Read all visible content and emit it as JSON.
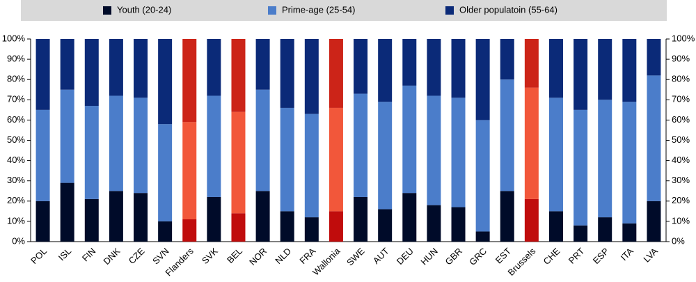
{
  "chart_data": {
    "type": "stacked_bar",
    "categories": [
      "POL",
      "ISL",
      "FIN",
      "DNK",
      "CZE",
      "SVN",
      "Flanders",
      "SVK",
      "BEL",
      "NOR",
      "NLD",
      "FRA",
      "Wallonia",
      "SWE",
      "AUT",
      "DEU",
      "HUN",
      "GBR",
      "GRC",
      "EST",
      "Brussels",
      "CHE",
      "PRT",
      "ESP",
      "ITA",
      "LVA"
    ],
    "series": [
      {
        "name": "Youth (20-24)",
        "color": "#000b29",
        "highlight_color": "#c00c0c",
        "values": [
          20,
          29,
          21,
          25,
          24,
          10,
          11,
          22,
          14,
          25,
          15,
          12,
          15,
          22,
          16,
          24,
          18,
          17,
          5,
          25,
          21,
          15,
          8,
          12,
          9,
          20
        ]
      },
      {
        "name": "Prime-age (25-54)",
        "color": "#4b7dca",
        "highlight_color": "#f2573a",
        "values": [
          45,
          46,
          46,
          47,
          47,
          48,
          48,
          50,
          50,
          50,
          51,
          51,
          51,
          51,
          53,
          53,
          54,
          54,
          55,
          55,
          55,
          56,
          57,
          58,
          60,
          62
        ]
      },
      {
        "name": "Older populatoin (55-64)",
        "color": "#0b2a78",
        "highlight_color": "#cc2418",
        "values": [
          35,
          25,
          33,
          28,
          29,
          42,
          41,
          28,
          36,
          25,
          34,
          37,
          34,
          27,
          31,
          23,
          28,
          29,
          40,
          20,
          24,
          29,
          35,
          30,
          31,
          18
        ]
      }
    ],
    "highlight": [
      "Flanders",
      "BEL",
      "Wallonia",
      "Brussels"
    ],
    "ylim": [
      0,
      100
    ],
    "yticks": [
      {
        "value": 0,
        "label": "0%"
      },
      {
        "value": 10,
        "label": "10%"
      },
      {
        "value": 20,
        "label": "20%"
      },
      {
        "value": 30,
        "label": "30%"
      },
      {
        "value": 40,
        "label": "40%"
      },
      {
        "value": 50,
        "label": "50%"
      },
      {
        "value": 60,
        "label": "60%"
      },
      {
        "value": 70,
        "label": "70%"
      },
      {
        "value": 80,
        "label": "80%"
      },
      {
        "value": 90,
        "label": "90%"
      },
      {
        "value": 100,
        "label": "100%"
      }
    ],
    "legend": "top"
  }
}
